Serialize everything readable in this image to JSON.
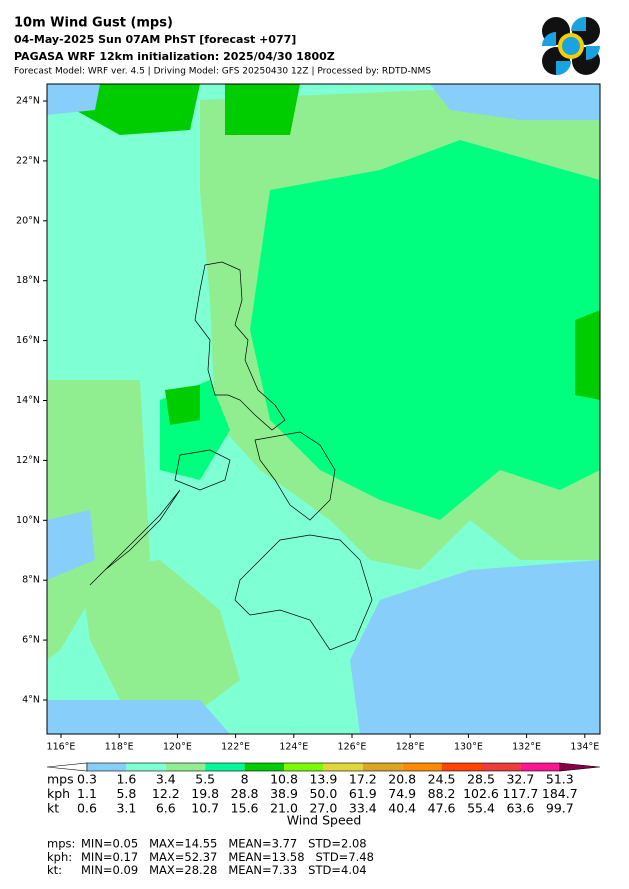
{
  "header": {
    "title": "10m Wind Gust (mps)",
    "subtitle": "04-May-2025 Sun 07AM PhST [forecast +077]",
    "init": "PAGASA WRF 12km initialization: 2025/04/30 1800Z",
    "model": "Forecast Model: WRF ver. 4.5 | Driving Model: GFS 20250430 12Z | Processed by: RDTD-NMS"
  },
  "map": {
    "lat_labels": [
      "24°N",
      "22°N",
      "20°N",
      "18°N",
      "16°N",
      "14°N",
      "12°N",
      "10°N",
      "8°N",
      "6°N",
      "4°N"
    ],
    "lon_labels": [
      "116°E",
      "118°E",
      "120°E",
      "122°E",
      "124°E",
      "126°E",
      "128°E",
      "130°E",
      "132°E",
      "134°E"
    ]
  },
  "colorbar": {
    "colors": [
      "#ffffff",
      "#87cefa",
      "#7fffd4",
      "#90ee90",
      "#00fa9a",
      "#00cd00",
      "#7cfc00",
      "#e0d83a",
      "#daa520",
      "#ff8c00",
      "#ff4500",
      "#ee3b3b",
      "#ff1493",
      "#8b0045"
    ],
    "rows": [
      {
        "unit": "mps",
        "values": [
          "0.3",
          "1.6",
          "3.4",
          "5.5",
          "8",
          "10.8",
          "13.9",
          "17.2",
          "20.8",
          "24.5",
          "28.5",
          "32.7",
          "51.3"
        ]
      },
      {
        "unit": "kph",
        "values": [
          "1.1",
          "5.8",
          "12.2",
          "19.8",
          "28.8",
          "38.9",
          "50.0",
          "61.9",
          "74.9",
          "88.2",
          "102.6",
          "117.7",
          "184.7"
        ]
      },
      {
        "unit": "kt",
        "values": [
          "0.6",
          "3.1",
          "6.6",
          "10.7",
          "15.6",
          "21.0",
          "27.0",
          "33.4",
          "40.4",
          "47.6",
          "55.4",
          "63.6",
          "99.7"
        ]
      }
    ],
    "label": "Wind Speed"
  },
  "stats": [
    {
      "unit": "mps:",
      "text": "MIN=0.05   MAX=14.55   MEAN=3.77   STD=2.08"
    },
    {
      "unit": "kph:",
      "text": "MIN=0.17   MAX=52.37   MEAN=13.58   STD=7.48"
    },
    {
      "unit": "kt:",
      "text": "MIN=0.09   MAX=28.28   MEAN=7.33   STD=4.04"
    }
  ]
}
